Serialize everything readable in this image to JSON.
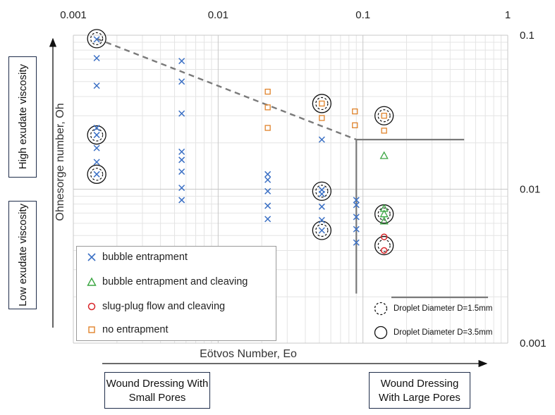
{
  "chart_data": {
    "type": "scatter",
    "x_scale": "log",
    "y_scale": "log",
    "xlim": [
      0.001,
      1
    ],
    "ylim": [
      0.001,
      0.1
    ],
    "x_ticks": [
      "0.001",
      "0.01",
      "0.1",
      "1"
    ],
    "y_ticks": [
      "0.1",
      "0.01",
      "0.001"
    ],
    "xlabel": "Eötvos Number, Eo",
    "ylabel": "Ohnesorge number, Oh",
    "grid": true,
    "legend_position": "bottom-left",
    "series": [
      {
        "name": "bubble entrapment",
        "marker": "x",
        "color": "#3a6fc4",
        "points": [
          [
            0.00145,
            0.094
          ],
          [
            0.00145,
            0.071
          ],
          [
            0.00145,
            0.047
          ],
          [
            0.00145,
            0.025
          ],
          [
            0.00145,
            0.0225
          ],
          [
            0.00145,
            0.0185
          ],
          [
            0.00145,
            0.015
          ],
          [
            0.00145,
            0.0125
          ],
          [
            0.0056,
            0.068
          ],
          [
            0.0056,
            0.05
          ],
          [
            0.0056,
            0.031
          ],
          [
            0.0056,
            0.0175
          ],
          [
            0.0056,
            0.0155
          ],
          [
            0.0056,
            0.013
          ],
          [
            0.0056,
            0.0102
          ],
          [
            0.0056,
            0.0085
          ],
          [
            0.022,
            0.0125
          ],
          [
            0.022,
            0.0115
          ],
          [
            0.022,
            0.0097
          ],
          [
            0.022,
            0.0078
          ],
          [
            0.022,
            0.0064
          ],
          [
            0.052,
            0.021
          ],
          [
            0.052,
            0.0099
          ],
          [
            0.052,
            0.0093
          ],
          [
            0.052,
            0.0077
          ],
          [
            0.052,
            0.0063
          ],
          [
            0.052,
            0.0054
          ],
          [
            0.09,
            0.0085
          ],
          [
            0.09,
            0.0079
          ],
          [
            0.09,
            0.0066
          ],
          [
            0.09,
            0.0055
          ],
          [
            0.09,
            0.0045
          ]
        ]
      },
      {
        "name": "bubble entrapment and cleaving",
        "marker": "triangle",
        "color": "#3aa541",
        "points": [
          [
            0.14,
            0.0165
          ],
          [
            0.14,
            0.0075
          ],
          [
            0.14,
            0.0069
          ],
          [
            0.14,
            0.0062
          ]
        ]
      },
      {
        "name": "slug-plug flow and cleaving",
        "marker": "circle",
        "color": "#d8262a",
        "points": [
          [
            0.14,
            0.0049
          ],
          [
            0.14,
            0.004
          ]
        ]
      },
      {
        "name": "no entrapment",
        "marker": "square",
        "color": "#e0832b",
        "points": [
          [
            0.022,
            0.043
          ],
          [
            0.022,
            0.034
          ],
          [
            0.022,
            0.025
          ],
          [
            0.052,
            0.036
          ],
          [
            0.052,
            0.029
          ],
          [
            0.088,
            0.032
          ],
          [
            0.088,
            0.026
          ],
          [
            0.14,
            0.03
          ],
          [
            0.14,
            0.024
          ]
        ]
      }
    ],
    "droplet_markers": {
      "dashed_small": [
        [
          0.00145,
          0.095
        ],
        [
          0.00145,
          0.0225
        ],
        [
          0.00145,
          0.0125
        ],
        [
          0.052,
          0.036
        ],
        [
          0.052,
          0.0097
        ],
        [
          0.052,
          0.0054
        ],
        [
          0.14,
          0.03
        ],
        [
          0.14,
          0.0069
        ],
        [
          0.14,
          0.0043
        ]
      ],
      "solid_large": [
        [
          0.00145,
          0.095
        ],
        [
          0.00145,
          0.0225
        ],
        [
          0.00145,
          0.0125
        ],
        [
          0.052,
          0.036
        ],
        [
          0.052,
          0.0097
        ],
        [
          0.052,
          0.0054
        ],
        [
          0.14,
          0.03
        ],
        [
          0.14,
          0.0069
        ],
        [
          0.14,
          0.0043
        ]
      ]
    },
    "dashed_boundary": [
      [
        0.00145,
        0.095
      ],
      [
        0.09,
        0.021
      ]
    ],
    "solid_boundary": [
      [
        0.09,
        0.021
      ],
      [
        0.5,
        0.021
      ],
      [
        0.09,
        0.021
      ],
      [
        0.09,
        0.0021
      ]
    ],
    "annotations": {
      "droplet_small": "Droplet Diameter D=1.5mm",
      "droplet_large": "Droplet Diameter D=3.5mm"
    }
  },
  "side_labels": {
    "high": "High exudate viscosity",
    "low": "Low exudate viscosity"
  },
  "bottom_labels": {
    "small": "Wound Dressing With Small Pores",
    "large": "Wound Dressing With Large Pores"
  }
}
